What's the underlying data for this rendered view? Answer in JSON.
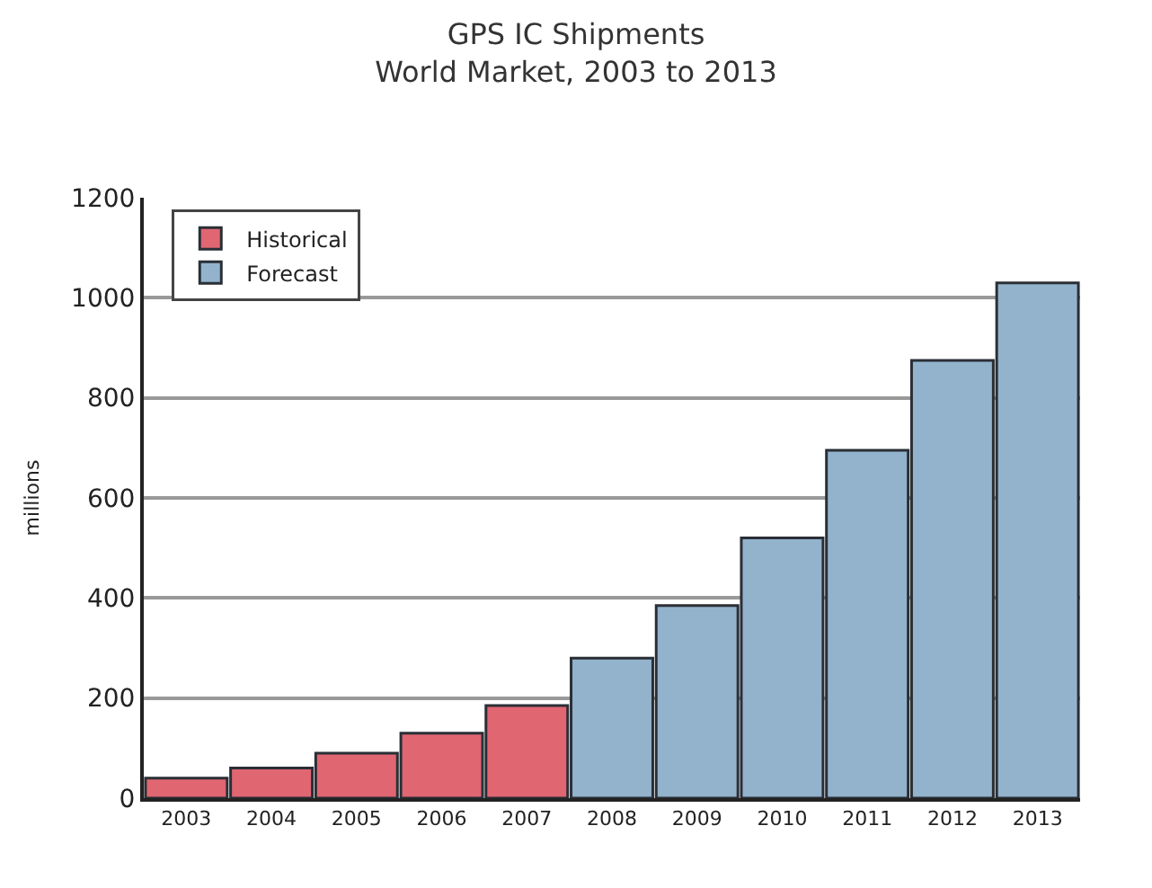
{
  "chart_data": {
    "type": "bar",
    "title": "GPS IC Shipments",
    "subtitle": "World Market, 2003 to 2013",
    "ylabel": "millions",
    "categories": [
      "2003",
      "2004",
      "2005",
      "2006",
      "2007",
      "2008",
      "2009",
      "2010",
      "2011",
      "2012",
      "2013"
    ],
    "series": [
      {
        "name": "Historical",
        "color": "#e06672",
        "values": [
          40,
          60,
          90,
          130,
          185,
          null,
          null,
          null,
          null,
          null,
          null
        ]
      },
      {
        "name": "Forecast",
        "color": "#93b3cd",
        "values": [
          null,
          null,
          null,
          null,
          null,
          280,
          385,
          520,
          695,
          875,
          1030
        ]
      }
    ],
    "ylim": [
      0,
      1200
    ],
    "yticks": [
      0,
      200,
      400,
      600,
      800,
      1000,
      1200
    ],
    "grid": "y",
    "legend": "top left"
  }
}
